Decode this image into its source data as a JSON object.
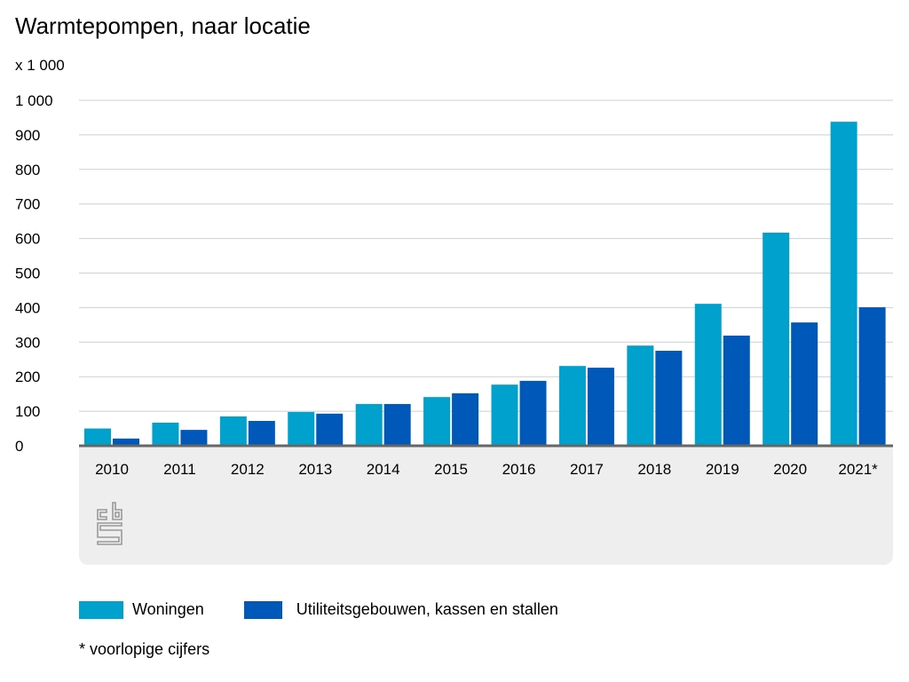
{
  "chart_data": {
    "type": "bar",
    "title": "Warmtepompen, naar locatie",
    "ylabel": "x 1 000",
    "ylim": [
      0,
      1000
    ],
    "yticks": [
      0,
      100,
      200,
      300,
      400,
      500,
      600,
      700,
      800,
      900,
      1000
    ],
    "ytick_labels": [
      "0",
      "100",
      "200",
      "300",
      "400",
      "500",
      "600",
      "700",
      "800",
      "900",
      "1 000"
    ],
    "categories": [
      "2010",
      "2011",
      "2012",
      "2013",
      "2014",
      "2015",
      "2016",
      "2017",
      "2018",
      "2019",
      "2020",
      "2021*"
    ],
    "series": [
      {
        "name": "Woningen",
        "color": "#00a1cd",
        "values": [
          50,
          67,
          85,
          98,
          121,
          141,
          177,
          231,
          290,
          411,
          617,
          938
        ]
      },
      {
        "name": "Utiliteitsgebouwen, kassen en stallen",
        "color": "#0058b8",
        "values": [
          21,
          46,
          72,
          93,
          121,
          152,
          188,
          226,
          275,
          319,
          357,
          401
        ]
      }
    ],
    "grid": true,
    "legend": "bottom-left",
    "footnote": "* voorlopige cijfers"
  }
}
